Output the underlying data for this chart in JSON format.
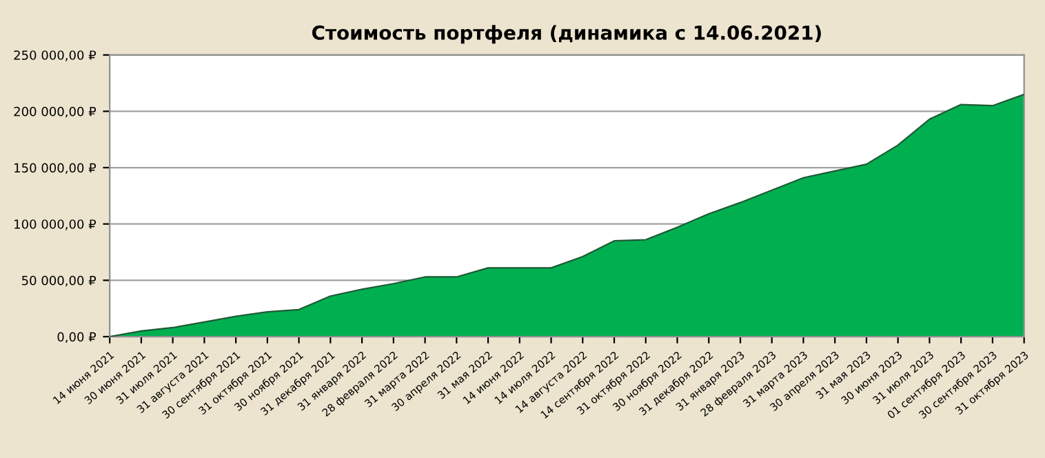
{
  "chart_data": {
    "type": "area",
    "title": "Стоимость портфеля (динамика с 14.06.2021)",
    "categories": [
      "14 июня 2021",
      "30 июня 2021",
      "31 июля 2021",
      "31 августа 2021",
      "30 сентября 2021",
      "31 октября 2021",
      "30 ноября 2021",
      "31 декабря 2021",
      "31 января 2022",
      "28 февраля 2022",
      "31 марта 2022",
      "30 апреля 2022",
      "31 мая 2022",
      "14 июня 2022",
      "14 июля 2022",
      "14 августа 2022",
      "14 сентября 2022",
      "31 октября 2022",
      "30 ноября 2022",
      "31 декабря 2022",
      "31 января 2023",
      "28 февраля 2023",
      "31 марта 2023",
      "30 апреля 2023",
      "31 мая 2023",
      "30 июня 2023",
      "31 июля 2023",
      "01 сентября 2023",
      "30 сентября 2023",
      "31 октября 2023"
    ],
    "series": [
      {
        "color": "#00b050",
        "values": [
          0,
          5000,
          8000,
          13000,
          18000,
          22000,
          24000,
          36000,
          42000,
          47000,
          53000,
          53000,
          61000,
          61000,
          61000,
          71000,
          85000,
          86000,
          97000,
          109000,
          119000,
          130000,
          141000,
          147000,
          153000,
          170000,
          193000,
          206000,
          205000,
          215000
        ]
      }
    ],
    "ylim": [
      0,
      250000
    ],
    "yticks": [
      {
        "value": 0,
        "label": "0,00 ₽"
      },
      {
        "value": 50000,
        "label": "50 000,00 ₽"
      },
      {
        "value": 100000,
        "label": "100 000,00 ₽"
      },
      {
        "value": 150000,
        "label": "150 000,00 ₽"
      },
      {
        "value": 200000,
        "label": "200 000,00 ₽"
      },
      {
        "value": 250000,
        "label": "250 000,00 ₽"
      }
    ],
    "grid": "y",
    "legend": false
  }
}
